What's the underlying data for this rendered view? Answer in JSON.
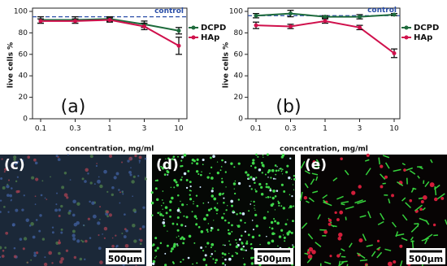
{
  "chart_data": [
    {
      "type": "line",
      "panel_label": "(a)",
      "x_label": "concentration, mg/ml",
      "y_label": "live cells %",
      "categories": [
        "0.1",
        "0.3",
        "1",
        "3",
        "10"
      ],
      "ylim": [
        0,
        100
      ],
      "yticks": [
        0,
        20,
        40,
        60,
        80,
        100
      ],
      "control_value": 95,
      "control_label": "control",
      "series": [
        {
          "name": "DCPD",
          "color": "#1e6b3c",
          "values": [
            92,
            92,
            93,
            88,
            82
          ],
          "errors": [
            3,
            3,
            2,
            3,
            3
          ]
        },
        {
          "name": "HAp",
          "color": "#d0104c",
          "values": [
            91,
            91,
            92,
            86,
            68
          ],
          "errors": [
            2,
            2,
            2,
            3,
            8
          ]
        }
      ]
    },
    {
      "type": "line",
      "panel_label": "(b)",
      "x_label": "concentration, mg/ml",
      "y_label": "live cells %",
      "categories": [
        "0.1",
        "0.3",
        "1",
        "3",
        "10"
      ],
      "ylim": [
        0,
        100
      ],
      "yticks": [
        0,
        20,
        40,
        60,
        80,
        100
      ],
      "control_value": 96,
      "control_label": "control",
      "series": [
        {
          "name": "DCPD",
          "color": "#1e6b3c",
          "values": [
            96,
            98,
            95,
            95,
            97
          ],
          "errors": [
            2,
            3,
            1,
            2,
            1
          ]
        },
        {
          "name": "HAp",
          "color": "#d0104c",
          "values": [
            87,
            86,
            91,
            85,
            61
          ],
          "errors": [
            3,
            2,
            2,
            2,
            4
          ]
        }
      ]
    }
  ],
  "images": [
    {
      "label": "(c)",
      "scale_bar": "500µm"
    },
    {
      "label": "(d)",
      "scale_bar": "500µm"
    },
    {
      "label": "(e)",
      "scale_bar": "500µm"
    }
  ]
}
